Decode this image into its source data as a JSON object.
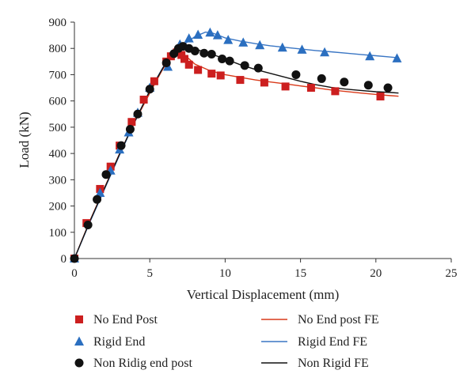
{
  "chart_data": {
    "type": "scatter",
    "title": "",
    "xlabel": "Vertical Displacement (mm)",
    "ylabel": "Load (kN)",
    "xlim": [
      0,
      25
    ],
    "ylim": [
      0,
      900
    ],
    "xticks": [
      0,
      5,
      10,
      15,
      20,
      25
    ],
    "yticks": [
      0,
      100,
      200,
      300,
      400,
      500,
      600,
      700,
      800,
      900
    ],
    "grid": false,
    "legend_position": "bottom",
    "series": [
      {
        "name": "No End Post",
        "kind": "marker",
        "marker": "square",
        "color": "#cc1f1f",
        "x": [
          0,
          0.8,
          1.7,
          2.4,
          3.0,
          3.8,
          4.6,
          5.3,
          6.1,
          6.4,
          6.8,
          7.1,
          7.3,
          7.6,
          8.2,
          9.1,
          9.7,
          11.0,
          12.6,
          14.0,
          15.7,
          17.3,
          20.3
        ],
        "y": [
          0,
          135,
          265,
          350,
          430,
          520,
          605,
          675,
          750,
          770,
          785,
          775,
          760,
          738,
          718,
          704,
          697,
          680,
          670,
          655,
          650,
          637,
          617
        ]
      },
      {
        "name": "Rigid End",
        "kind": "marker",
        "marker": "triangle",
        "color": "#2b6fc0",
        "x": [
          0,
          1.7,
          2.4,
          3.0,
          3.6,
          4.2,
          5.0,
          6.2,
          7.0,
          7.6,
          8.2,
          9.0,
          9.5,
          10.2,
          11.2,
          12.3,
          13.8,
          15.1,
          16.6,
          19.6,
          21.4
        ],
        "y": [
          0,
          250,
          335,
          415,
          480,
          555,
          650,
          730,
          815,
          838,
          852,
          860,
          850,
          832,
          822,
          812,
          803,
          795,
          785,
          770,
          762
        ]
      },
      {
        "name": "Non Ridig end post",
        "kind": "marker",
        "marker": "circle",
        "color": "#111111",
        "x": [
          0,
          0.9,
          1.5,
          2.1,
          3.1,
          3.7,
          4.2,
          5.0,
          6.1,
          6.6,
          6.9,
          7.2,
          7.6,
          8.0,
          8.6,
          9.1,
          9.8,
          10.3,
          11.3,
          12.2,
          14.7,
          16.4,
          17.9,
          19.5,
          20.8
        ],
        "y": [
          0,
          128,
          225,
          320,
          430,
          492,
          550,
          645,
          745,
          780,
          800,
          808,
          800,
          790,
          782,
          778,
          760,
          752,
          735,
          725,
          700,
          685,
          672,
          660,
          650
        ]
      },
      {
        "name": "No End post FE",
        "kind": "line",
        "color": "#d93a1a",
        "x": [
          0,
          1,
          2,
          3,
          4,
          5,
          5.8,
          6.3,
          6.8,
          7.0,
          7.5,
          8.0,
          9.0,
          10.0,
          11.0,
          12.0,
          13.0,
          14.0,
          15.0,
          16.0,
          17.0,
          18.0,
          19.0,
          20.0,
          21.0,
          21.5
        ],
        "y": [
          0,
          140,
          270,
          400,
          520,
          630,
          715,
          760,
          785,
          790,
          765,
          740,
          715,
          700,
          690,
          680,
          672,
          665,
          657,
          650,
          642,
          636,
          630,
          625,
          620,
          618
        ]
      },
      {
        "name": "Rigid End FE",
        "kind": "line",
        "color": "#3a76c4",
        "x": [
          0,
          1,
          2,
          3,
          4,
          5,
          6,
          7,
          8,
          8.7,
          9.2,
          10,
          11,
          12,
          13,
          14,
          15,
          16,
          17,
          18,
          19,
          20,
          21,
          21.5
        ],
        "y": [
          0,
          135,
          265,
          395,
          520,
          640,
          740,
          805,
          845,
          862,
          858,
          840,
          828,
          818,
          810,
          804,
          798,
          792,
          787,
          782,
          777,
          772,
          767,
          764
        ]
      },
      {
        "name": "Non Rigid FE",
        "kind": "line",
        "color": "#111111",
        "x": [
          0,
          1,
          2,
          3,
          4,
          5,
          6,
          6.7,
          7.2,
          7.6,
          8.0,
          9.0,
          10.0,
          11.0,
          12.0,
          13.0,
          14.0,
          15.0,
          16.0,
          17.0,
          18.0,
          19.0,
          20.0,
          21.0,
          21.5
        ],
        "y": [
          0,
          138,
          268,
          398,
          522,
          638,
          738,
          790,
          808,
          805,
          798,
          780,
          760,
          738,
          720,
          705,
          690,
          675,
          662,
          652,
          645,
          640,
          635,
          632,
          630
        ]
      }
    ]
  }
}
